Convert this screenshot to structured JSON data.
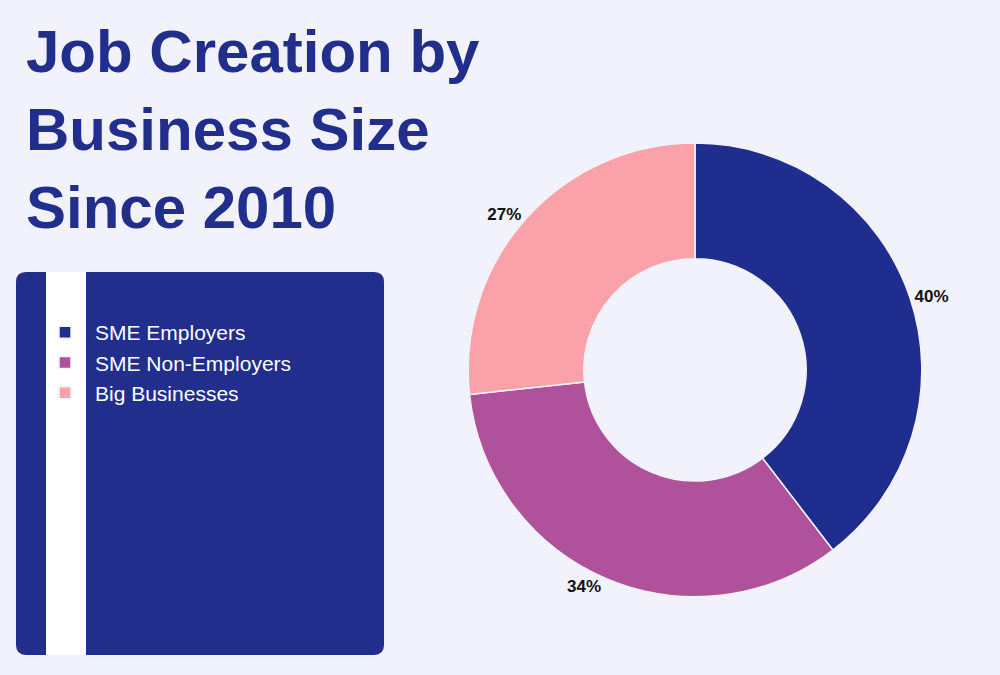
{
  "chart_data": {
    "type": "pie",
    "title": "Job Creation by Business Size Since 2010",
    "categories": [
      "SME Employers",
      "SME Non-Employers",
      "Big Businesses"
    ],
    "values": [
      40,
      34,
      27
    ],
    "value_labels": [
      "40%",
      "34%",
      "27%"
    ],
    "colors": [
      "#1f2d8f",
      "#b0529b",
      "#fba1a9"
    ],
    "data_labels": true,
    "legend": "left"
  }
}
